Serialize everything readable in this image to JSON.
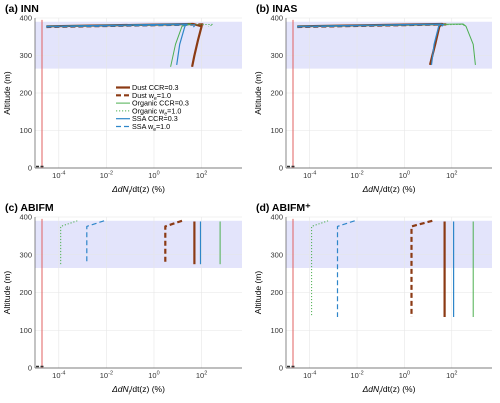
{
  "chart_data": [
    {
      "type": "line",
      "title": "(a) INN",
      "xlabel": "ΔdN_i/dt(z) (%)",
      "ylabel": "Altitude (m)",
      "xscale": "log",
      "xlim": [
        1e-05,
        5000
      ],
      "ylim": [
        0,
        400
      ],
      "shade_y": [
        265,
        390
      ],
      "grid": true,
      "series": [
        {
          "name": "Dust CCR=0.3",
          "color": "#8b3a14",
          "style": "solid",
          "width": 2.2,
          "points": [
            [
              3e-05,
              378
            ],
            [
              45,
              384
            ],
            [
              100,
              378
            ],
            [
              70,
              340
            ],
            [
              50,
              300
            ],
            [
              40,
              270
            ]
          ]
        },
        {
          "name": "Dust w_e=1.0",
          "color": "#8b3a14",
          "style": "dash",
          "width": 2.2,
          "points": [
            [
              3e-05,
              376
            ],
            [
              110,
              383
            ],
            [
              90,
              376
            ]
          ]
        },
        {
          "name": "Organic CCR=0.3",
          "color": "#4caf50",
          "style": "solid",
          "width": 1.0,
          "points": [
            [
              3e-05,
              378
            ],
            [
              35,
              384
            ],
            [
              15,
              378
            ],
            [
              8,
              330
            ],
            [
              5,
              270
            ]
          ]
        },
        {
          "name": "Organic w_e=1.0",
          "color": "#4caf50",
          "style": "dot",
          "width": 1.0,
          "points": [
            [
              3e-05,
              377
            ],
            [
              300,
              383
            ],
            [
              200,
              377
            ]
          ]
        },
        {
          "name": "SSA CCR=0.3",
          "color": "#2e86c9",
          "style": "solid",
          "width": 1.2,
          "points": [
            [
              3e-05,
              378
            ],
            [
              25,
              384
            ],
            [
              20,
              378
            ],
            [
              12,
              330
            ],
            [
              9,
              275
            ]
          ]
        },
        {
          "name": "SSA w_e=1.0",
          "color": "#2e86c9",
          "style": "dash",
          "width": 1.2,
          "points": [
            [
              3e-05,
              376
            ],
            [
              60,
              382
            ],
            [
              45,
              376
            ]
          ]
        }
      ]
    },
    {
      "type": "line",
      "title": "(b) INAS",
      "xlabel": "ΔdN_i/dt(z) (%)",
      "ylabel": "Altitude (m)",
      "xscale": "log",
      "xlim": [
        1e-05,
        5000
      ],
      "ylim": [
        0,
        400
      ],
      "shade_y": [
        265,
        390
      ],
      "grid": true,
      "series": [
        {
          "name": "Dust CCR=0.3",
          "color": "#8b3a14",
          "style": "solid",
          "width": 2.2,
          "points": [
            [
              3e-05,
              378
            ],
            [
              40,
              384
            ],
            [
              30,
              378
            ],
            [
              20,
              330
            ],
            [
              12,
              275
            ]
          ]
        },
        {
          "name": "Dust w_e=1.0",
          "color": "#8b3a14",
          "style": "dash",
          "width": 2.2,
          "points": [
            [
              3e-05,
              376
            ],
            [
              55,
              383
            ],
            [
              45,
              376
            ]
          ]
        },
        {
          "name": "Organic CCR=0.3",
          "color": "#4caf50",
          "style": "solid",
          "width": 1.0,
          "points": [
            [
              3e-05,
              378
            ],
            [
              300,
              384
            ],
            [
              400,
              378
            ],
            [
              800,
              330
            ],
            [
              1000,
              275
            ]
          ]
        },
        {
          "name": "Organic w_e=1.0",
          "color": "#4caf50",
          "style": "dot",
          "width": 1.0,
          "points": [
            [
              3e-05,
              377
            ],
            [
              350,
              383
            ],
            [
              300,
              377
            ]
          ]
        },
        {
          "name": "SSA CCR=0.3",
          "color": "#2e86c9",
          "style": "solid",
          "width": 1.2,
          "points": [
            [
              3e-05,
              378
            ],
            [
              35,
              384
            ],
            [
              28,
              378
            ],
            [
              18,
              330
            ],
            [
              14,
              275
            ]
          ]
        },
        {
          "name": "SSA w_e=1.0",
          "color": "#2e86c9",
          "style": "dash",
          "width": 1.2,
          "points": [
            [
              3e-05,
              376
            ],
            [
              45,
              383
            ],
            [
              35,
              376
            ]
          ]
        }
      ]
    },
    {
      "type": "line",
      "title": "(c) ABIFM",
      "xlabel": "ΔdN_i/dt(z) (%)",
      "ylabel": "Altitude (m)",
      "xscale": "log",
      "xlim": [
        1e-05,
        5000
      ],
      "ylim": [
        0,
        400
      ],
      "shade_y": [
        265,
        390
      ],
      "grid": true,
      "series": [
        {
          "name": "Dust CCR=0.3",
          "color": "#8b3a14",
          "style": "solid",
          "width": 2.2,
          "points": [
            [
              50,
              388
            ],
            [
              50,
              275
            ]
          ]
        },
        {
          "name": "Dust w_e=1.0",
          "color": "#8b3a14",
          "style": "dash",
          "width": 2.2,
          "points": [
            [
              15,
              390
            ],
            [
              3,
              375
            ],
            [
              3,
              275
            ]
          ]
        },
        {
          "name": "Organic CCR=0.3",
          "color": "#4caf50",
          "style": "solid",
          "width": 1.0,
          "points": [
            [
              600,
              388
            ],
            [
              600,
              275
            ]
          ]
        },
        {
          "name": "Organic w_e=1.0",
          "color": "#4caf50",
          "style": "dot",
          "width": 1.0,
          "points": [
            [
              0.0006,
              390
            ],
            [
              0.00012,
              375
            ],
            [
              0.00012,
              275
            ]
          ]
        },
        {
          "name": "SSA CCR=0.3",
          "color": "#2e86c9",
          "style": "solid",
          "width": 1.2,
          "points": [
            [
              90,
              388
            ],
            [
              90,
              275
            ]
          ]
        },
        {
          "name": "SSA w_e=1.0",
          "color": "#2e86c9",
          "style": "dash",
          "width": 1.2,
          "points": [
            [
              0.008,
              390
            ],
            [
              0.0015,
              375
            ],
            [
              0.0015,
              275
            ]
          ]
        }
      ]
    },
    {
      "type": "line",
      "title": "(d) ABIFM⁺",
      "xlabel": "ΔdN_i/dt(z) (%)",
      "ylabel": "Altitude (m)",
      "xscale": "log",
      "xlim": [
        1e-05,
        5000
      ],
      "ylim": [
        0,
        400
      ],
      "shade_y": [
        265,
        390
      ],
      "grid": true,
      "series": [
        {
          "name": "Dust CCR=0.3",
          "color": "#8b3a14",
          "style": "solid",
          "width": 2.2,
          "points": [
            [
              50,
              388
            ],
            [
              50,
              135
            ]
          ]
        },
        {
          "name": "Dust w_e=1.0",
          "color": "#8b3a14",
          "style": "dash",
          "width": 2.2,
          "points": [
            [
              15,
              390
            ],
            [
              2,
              375
            ],
            [
              2,
              135
            ]
          ]
        },
        {
          "name": "Organic CCR=0.3",
          "color": "#4caf50",
          "style": "solid",
          "width": 1.0,
          "points": [
            [
              800,
              388
            ],
            [
              800,
              135
            ]
          ]
        },
        {
          "name": "Organic w_e=1.0",
          "color": "#4caf50",
          "style": "dot",
          "width": 1.0,
          "points": [
            [
              0.0006,
              390
            ],
            [
              0.00012,
              375
            ],
            [
              0.00012,
              135
            ]
          ]
        },
        {
          "name": "SSA CCR=0.3",
          "color": "#2e86c9",
          "style": "solid",
          "width": 1.2,
          "points": [
            [
              120,
              388
            ],
            [
              120,
              135
            ]
          ]
        },
        {
          "name": "SSA w_e=1.0",
          "color": "#2e86c9",
          "style": "dash",
          "width": 1.2,
          "points": [
            [
              0.008,
              390
            ],
            [
              0.0015,
              375
            ],
            [
              0.0015,
              135
            ]
          ]
        }
      ]
    }
  ],
  "yticks": [
    0,
    100,
    200,
    300,
    400
  ],
  "xticks": [
    {
      "value": 0.0001,
      "base": "10",
      "exp": "-4"
    },
    {
      "value": 0.01,
      "base": "10",
      "exp": "-2"
    },
    {
      "value": 1,
      "base": "10",
      "exp": "0"
    },
    {
      "value": 100,
      "base": "10",
      "exp": "2"
    }
  ],
  "legend_entries": [
    {
      "prefix": "Dust CCR=0.3",
      "suffix": ""
    },
    {
      "prefix": "Dust w",
      "sub": "e",
      "suffix": "=1.0"
    },
    {
      "prefix": "Organic CCR=0.3",
      "suffix": ""
    },
    {
      "prefix": "Organic w",
      "sub": "e",
      "suffix": "=1.0"
    },
    {
      "prefix": "SSA CCR=0.3",
      "suffix": ""
    },
    {
      "prefix": "SSA w",
      "sub": "e",
      "suffix": "=1.0"
    }
  ],
  "colors": {
    "shade": "#e3e4fb",
    "grid": "#e6e6e6",
    "reference_line": "#e06060"
  }
}
